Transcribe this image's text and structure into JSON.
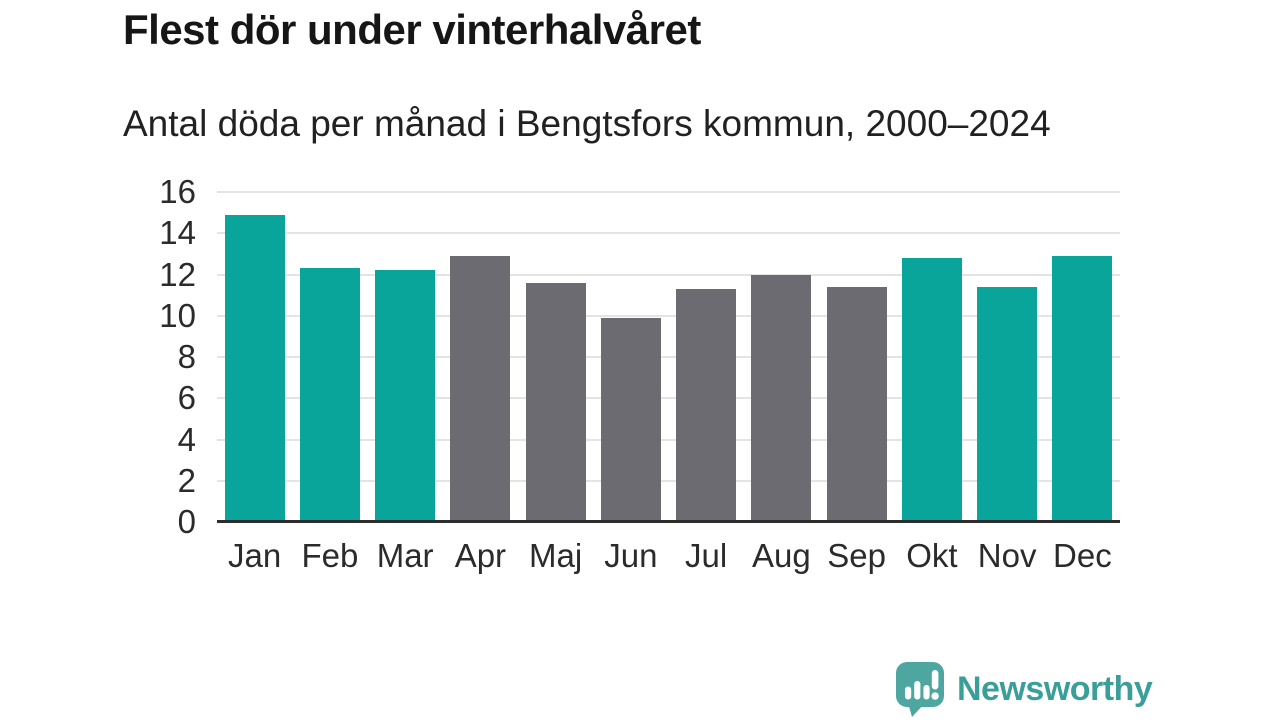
{
  "header": {
    "title": "Flest dör under vinterhalvåret",
    "subtitle": "Antal döda per månad i Bengtsfors kommun, 2000–2024"
  },
  "chart_data": {
    "type": "bar",
    "title": "Flest dör under vinterhalvåret",
    "subtitle": "Antal döda per månad i Bengtsfors kommun, 2000–2024",
    "categories": [
      "Jan",
      "Feb",
      "Mar",
      "Apr",
      "Maj",
      "Jun",
      "Jul",
      "Aug",
      "Sep",
      "Okt",
      "Nov",
      "Dec"
    ],
    "values": [
      14.9,
      12.3,
      12.2,
      12.9,
      11.6,
      9.9,
      11.3,
      12.0,
      11.4,
      12.8,
      11.4,
      12.9
    ],
    "bar_groups": [
      "winter",
      "winter",
      "winter",
      "summer",
      "summer",
      "summer",
      "summer",
      "summer",
      "summer",
      "winter",
      "winter",
      "winter"
    ],
    "group_colors": {
      "winter": "#09a59b",
      "summer": "#6c6b71"
    },
    "xlabel": "",
    "ylabel": "",
    "ylim": [
      0,
      16
    ],
    "yticks": [
      0,
      2,
      4,
      6,
      8,
      10,
      12,
      14,
      16
    ],
    "grid": true,
    "grid_color": "#e4e4e4",
    "axis_color": "#2d2d2d",
    "legend": false
  },
  "footer": {
    "brand": "Newsworthy",
    "icon_color": "#4da7a0",
    "text_color": "#3b9f99"
  }
}
